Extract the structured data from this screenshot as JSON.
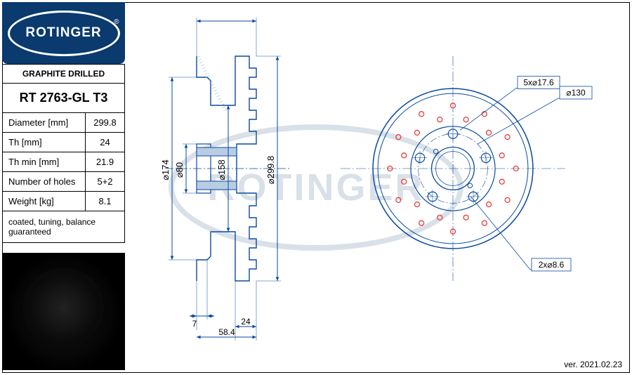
{
  "brand": "ROTINGER",
  "product_type": "GRAPHITE DRILLED",
  "part_number": "RT 2763-GL T3",
  "specs": [
    {
      "label": "Diameter [mm]",
      "value": "299.8"
    },
    {
      "label": "Th [mm]",
      "value": "24"
    },
    {
      "label": "Th min [mm]",
      "value": "21.9"
    },
    {
      "label": "Number of holes",
      "value": "5+2"
    },
    {
      "label": "Weight [kg]",
      "value": "8.1"
    }
  ],
  "note": "coated, tuning, balance guaranteed",
  "version": "ver. 2021.02.23",
  "section_view": {
    "dims": {
      "d174": "⌀174",
      "d80": "⌀80",
      "d158": "⌀158",
      "d299": "⌀299.8",
      "w7": "7",
      "w24": "24",
      "w58": "58.4"
    },
    "colors": {
      "line": "#0a4aa0",
      "light": "#8daed4"
    }
  },
  "face_view": {
    "callouts": {
      "bolt": "5x⌀17.6",
      "hub": "⌀130",
      "extra": "2x⌀8.6"
    },
    "outer_d": 299.8,
    "inner_plate_d": 158,
    "hub_d": 80,
    "bolt_circle_d": 130,
    "bolt_hole_d": 17.6,
    "extra_hole_d": 8.6,
    "drill_rows": [
      {
        "r": 118,
        "n": 12,
        "off": 0
      },
      {
        "r": 95,
        "n": 12,
        "off": 15
      }
    ],
    "colors": {
      "line": "#0a4aa0",
      "drill": "#e63c3c",
      "center": "#0a4aa0"
    },
    "scale": 0.76
  }
}
